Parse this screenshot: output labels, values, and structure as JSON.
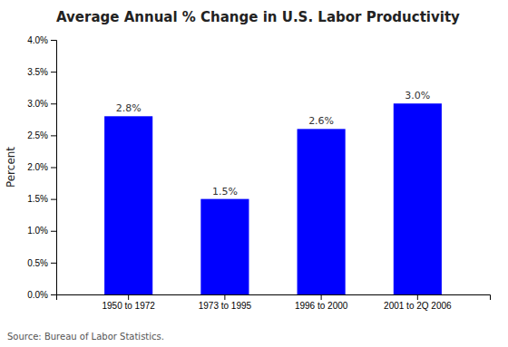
{
  "chart_data": {
    "type": "bar",
    "title": "Average Annual % Change in U.S. Labor Productivity",
    "ylabel": "Percent",
    "source": "Source: Bureau of Labor Statistics.",
    "categories": [
      "1950 to 1972",
      "1973 to 1995",
      "1996 to 2000",
      "2001 to 2Q 2006"
    ],
    "values": [
      2.8,
      1.5,
      2.6,
      3.0
    ],
    "value_labels": [
      "2.8%",
      "1.5%",
      "2.6%",
      "3.0%"
    ],
    "data_labels": true,
    "color": "#0000ff",
    "ylim": [
      0.0,
      4.0
    ],
    "yticks": [
      {
        "value": 0.0,
        "label": "0.0%"
      },
      {
        "value": 0.5,
        "label": "0.5%"
      },
      {
        "value": 1.0,
        "label": "1.0%"
      },
      {
        "value": 1.5,
        "label": "1.5%"
      },
      {
        "value": 2.0,
        "label": "2.0%"
      },
      {
        "value": 2.5,
        "label": "2.5%"
      },
      {
        "value": 3.0,
        "label": "3.0%"
      },
      {
        "value": 3.5,
        "label": "3.5%"
      },
      {
        "value": 4.0,
        "label": "4.0%"
      }
    ],
    "grid": false
  }
}
